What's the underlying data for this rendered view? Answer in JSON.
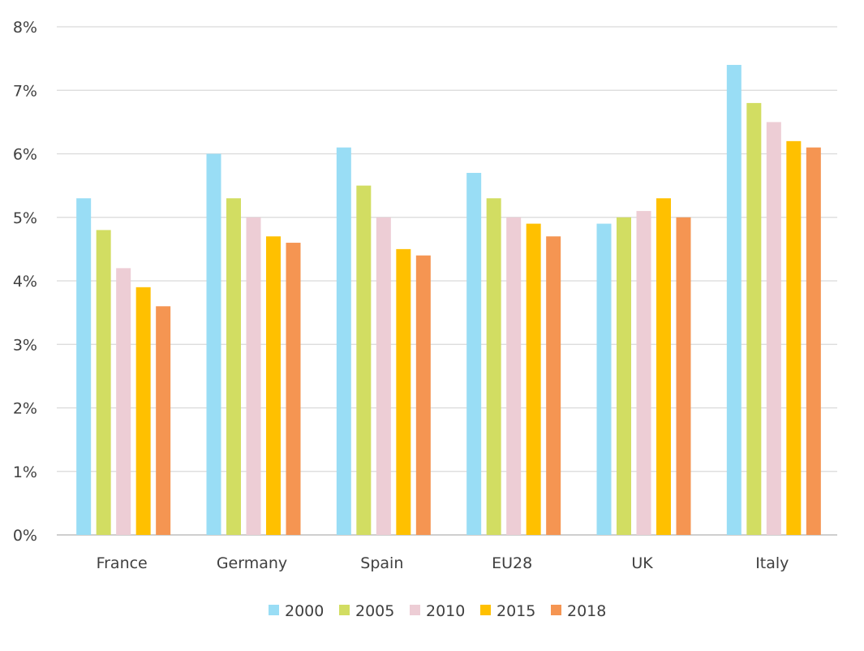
{
  "chart_data": {
    "type": "bar",
    "title": "",
    "xlabel": "",
    "ylabel": "",
    "ylim": [
      0,
      8
    ],
    "y_ticks": [
      "0%",
      "1%",
      "2%",
      "3%",
      "4%",
      "5%",
      "6%",
      "7%",
      "8%"
    ],
    "grid": "horizontal",
    "legend_position": "bottom",
    "categories": [
      "France",
      "Germany",
      "Spain",
      "EU28",
      "UK",
      "Italy"
    ],
    "series": [
      {
        "name": "2000",
        "color": "#99DDF5",
        "values": [
          5.3,
          6.0,
          6.1,
          5.7,
          4.9,
          7.4
        ]
      },
      {
        "name": "2005",
        "color": "#D2DD62",
        "values": [
          4.8,
          5.3,
          5.5,
          5.3,
          5.0,
          6.8
        ]
      },
      {
        "name": "2010",
        "color": "#EDCDD5",
        "values": [
          4.2,
          5.0,
          5.0,
          5.0,
          5.1,
          6.5
        ]
      },
      {
        "name": "2015",
        "color": "#FFC000",
        "values": [
          3.9,
          4.7,
          4.5,
          4.9,
          5.3,
          6.2
        ]
      },
      {
        "name": "2018",
        "color": "#F59552",
        "values": [
          3.6,
          4.6,
          4.4,
          4.7,
          5.0,
          6.1
        ]
      }
    ]
  }
}
